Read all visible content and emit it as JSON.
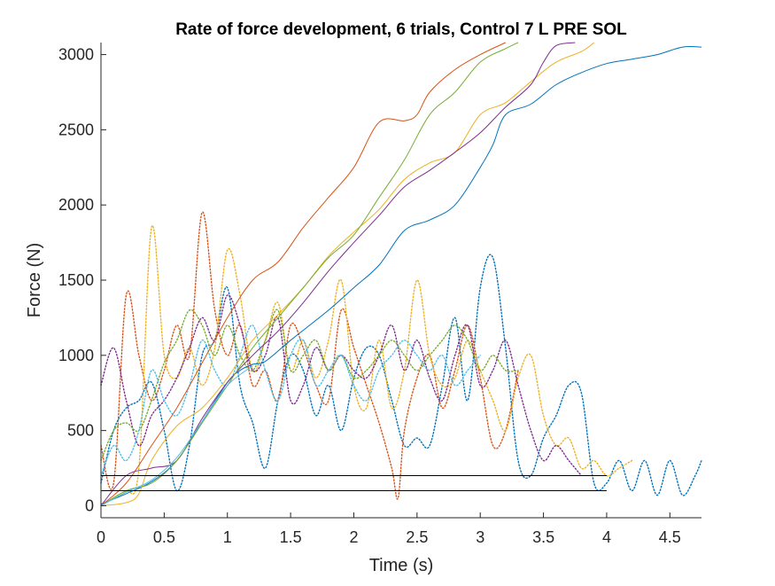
{
  "chart_data": {
    "type": "line",
    "title": "Rate of force development, 6 trials, Control 7 L PRE SOL",
    "xlabel": "Time (s)",
    "ylabel": "Force (N)",
    "xlim": [
      0,
      4.75
    ],
    "ylim": [
      -80,
      3080
    ],
    "grid": false,
    "legend": "none",
    "xticks": [
      0,
      0.5,
      1,
      1.5,
      2,
      2.5,
      3,
      3.5,
      4,
      4.5
    ],
    "xtick_labels": [
      "0",
      "0.5",
      "1",
      "1.5",
      "2",
      "2.5",
      "3",
      "3.5",
      "4",
      "4.5"
    ],
    "yticks": [
      0,
      500,
      1000,
      1500,
      2000,
      2500,
      3000
    ],
    "ytick_labels": [
      "0",
      "500",
      "1000",
      "1500",
      "2000",
      "2500",
      "3000"
    ],
    "threshold_lines": [
      {
        "y": 200,
        "x_start": 0,
        "x_end": 4.0,
        "color": "#000000"
      },
      {
        "y": 100,
        "x_start": 0,
        "x_end": 4.0,
        "color": "#000000"
      }
    ],
    "force_series": [
      {
        "color": "#0072BD",
        "x": [
          0,
          0.2,
          0.4,
          0.6,
          0.8,
          1.0,
          1.1,
          1.2,
          1.3,
          1.5,
          1.8,
          2.0,
          2.2,
          2.4,
          2.6,
          2.8,
          3.0,
          3.1,
          3.2,
          3.4,
          3.6,
          3.8,
          4.0,
          4.2,
          4.4,
          4.6,
          4.75
        ],
        "y": [
          10,
          80,
          160,
          300,
          560,
          820,
          900,
          940,
          960,
          1100,
          1300,
          1450,
          1600,
          1830,
          1900,
          2000,
          2250,
          2400,
          2600,
          2670,
          2800,
          2880,
          2940,
          2970,
          3000,
          3050,
          3050
        ]
      },
      {
        "color": "#D95319",
        "x": [
          0,
          0.2,
          0.4,
          0.6,
          0.8,
          1.0,
          1.2,
          1.4,
          1.6,
          1.8,
          2.0,
          2.2,
          2.4,
          2.5,
          2.6,
          2.8,
          3.0,
          3.2
        ],
        "y": [
          0,
          150,
          400,
          650,
          950,
          1250,
          1500,
          1620,
          1850,
          2050,
          2250,
          2550,
          2560,
          2600,
          2750,
          2900,
          3000,
          3080
        ]
      },
      {
        "color": "#EDB120",
        "x": [
          0,
          0.2,
          0.3,
          0.4,
          0.6,
          0.8,
          1.0,
          1.2,
          1.4,
          1.6,
          1.8,
          2.0,
          2.2,
          2.4,
          2.6,
          2.8,
          3.0,
          3.2,
          3.4,
          3.6,
          3.8,
          3.9
        ],
        "y": [
          0,
          20,
          80,
          300,
          530,
          650,
          850,
          1100,
          1270,
          1450,
          1660,
          1820,
          1970,
          2170,
          2280,
          2350,
          2600,
          2680,
          2820,
          2950,
          3020,
          3080
        ]
      },
      {
        "color": "#7E2F8E",
        "x": [
          0,
          0.2,
          0.4,
          0.6,
          0.8,
          1.0,
          1.2,
          1.4,
          1.6,
          1.8,
          2.0,
          2.2,
          2.4,
          2.6,
          2.8,
          3.0,
          3.2,
          3.4,
          3.5,
          3.6,
          3.75
        ],
        "y": [
          0,
          200,
          250,
          300,
          580,
          820,
          1000,
          1160,
          1350,
          1560,
          1750,
          1930,
          2120,
          2230,
          2350,
          2480,
          2650,
          2800,
          2950,
          3060,
          3080
        ]
      },
      {
        "color": "#77AC30",
        "x": [
          0,
          0.2,
          0.4,
          0.6,
          0.8,
          1.0,
          1.2,
          1.4,
          1.6,
          1.8,
          2.0,
          2.2,
          2.4,
          2.6,
          2.8,
          3.0,
          3.2,
          3.3
        ],
        "y": [
          0,
          100,
          150,
          300,
          550,
          800,
          1050,
          1250,
          1450,
          1650,
          1800,
          2050,
          2300,
          2600,
          2750,
          2950,
          3040,
          3080
        ]
      },
      {
        "color": "#4DBEEE",
        "x": [
          0,
          0.2,
          0.4,
          0.6,
          0.8,
          1.0,
          1.2
        ],
        "y": [
          0,
          90,
          170,
          320,
          560,
          800,
          930
        ]
      }
    ],
    "rfd_series": [
      {
        "color": "#0072BD",
        "x": [
          0,
          0.1,
          0.2,
          0.3,
          0.4,
          0.5,
          0.6,
          0.7,
          0.8,
          0.9,
          1.0,
          1.1,
          1.2,
          1.3,
          1.4,
          1.5,
          1.6,
          1.7,
          1.8,
          1.9,
          2.0,
          2.1,
          2.2,
          2.3,
          2.4,
          2.5,
          2.6,
          2.7,
          2.8,
          2.9,
          3.0,
          3.1,
          3.2,
          3.3,
          3.4,
          3.5,
          3.6,
          3.7,
          3.8,
          3.9,
          4.0,
          4.1,
          4.2,
          4.3,
          4.4,
          4.5,
          4.6,
          4.7,
          4.75
        ],
        "y": [
          150,
          500,
          650,
          700,
          820,
          500,
          100,
          400,
          1000,
          1100,
          1450,
          800,
          550,
          250,
          700,
          1000,
          900,
          600,
          800,
          500,
          850,
          1050,
          1000,
          700,
          400,
          450,
          400,
          800,
          1250,
          700,
          1450,
          1650,
          1050,
          300,
          200,
          450,
          600,
          800,
          750,
          150,
          150,
          300,
          100,
          300,
          70,
          300,
          70,
          200,
          300
        ]
      },
      {
        "color": "#D95319",
        "x": [
          0,
          0.1,
          0.2,
          0.3,
          0.4,
          0.5,
          0.6,
          0.7,
          0.8,
          0.9,
          1.0,
          1.1,
          1.2,
          1.3,
          1.4,
          1.5,
          1.6,
          1.7,
          1.8,
          1.9,
          2.0,
          2.1,
          2.2,
          2.3,
          2.35,
          2.4,
          2.5,
          2.6,
          2.7,
          2.8,
          2.9,
          3.0,
          3.1,
          3.2,
          3.3
        ],
        "y": [
          400,
          150,
          1400,
          1000,
          700,
          900,
          1200,
          1000,
          1950,
          1300,
          1000,
          1200,
          800,
          900,
          700,
          1200,
          1050,
          800,
          700,
          1300,
          1050,
          800,
          550,
          250,
          50,
          500,
          850,
          1000,
          650,
          900,
          1200,
          850,
          400,
          500,
          900
        ]
      },
      {
        "color": "#EDB120",
        "x": [
          0,
          0.1,
          0.2,
          0.3,
          0.4,
          0.5,
          0.6,
          0.7,
          0.8,
          0.9,
          1.0,
          1.1,
          1.2,
          1.3,
          1.4,
          1.5,
          1.6,
          1.7,
          1.8,
          1.9,
          2.0,
          2.1,
          2.2,
          2.3,
          2.4,
          2.5,
          2.6,
          2.7,
          2.8,
          2.9,
          3.0,
          3.1,
          3.2,
          3.3,
          3.4,
          3.5,
          3.6,
          3.7,
          3.8,
          3.9,
          4.0,
          4.1,
          4.2
        ],
        "y": [
          0,
          50,
          100,
          250,
          1850,
          1000,
          850,
          1050,
          800,
          1050,
          1700,
          1400,
          900,
          1100,
          1350,
          900,
          1100,
          850,
          1100,
          1500,
          800,
          650,
          1100,
          650,
          900,
          1500,
          1000,
          800,
          850,
          1100,
          900,
          700,
          500,
          850,
          1000,
          600,
          400,
          450,
          250,
          300,
          200,
          250,
          300
        ]
      },
      {
        "color": "#7E2F8E",
        "x": [
          0,
          0.1,
          0.2,
          0.3,
          0.4,
          0.5,
          0.6,
          0.7,
          0.8,
          0.9,
          1.0,
          1.1,
          1.2,
          1.3,
          1.4,
          1.5,
          1.6,
          1.7,
          1.8,
          1.9,
          2.0,
          2.1,
          2.2,
          2.3,
          2.4,
          2.5,
          2.6,
          2.7,
          2.8,
          2.9,
          3.0,
          3.1,
          3.2,
          3.3,
          3.4,
          3.5,
          3.6,
          3.7,
          3.8
        ],
        "y": [
          800,
          1050,
          700,
          400,
          600,
          700,
          850,
          1050,
          1250,
          1100,
          1400,
          1200,
          900,
          1000,
          1250,
          700,
          800,
          1050,
          900,
          1000,
          900,
          850,
          1000,
          1200,
          900,
          1100,
          850,
          700,
          1000,
          1200,
          800,
          900,
          1100,
          800,
          500,
          300,
          400,
          300,
          200
        ]
      },
      {
        "color": "#77AC30",
        "x": [
          0,
          0.1,
          0.2,
          0.3,
          0.4,
          0.5,
          0.6,
          0.7,
          0.8,
          0.9,
          1.0,
          1.1,
          1.2,
          1.3,
          1.4,
          1.5,
          1.6,
          1.7,
          1.8,
          1.9,
          2.0,
          2.1,
          2.2,
          2.3,
          2.4,
          2.5,
          2.6,
          2.7,
          2.8,
          2.9,
          3.0,
          3.1,
          3.2,
          3.3
        ],
        "y": [
          300,
          500,
          550,
          500,
          700,
          950,
          1100,
          1300,
          1200,
          1000,
          1200,
          1000,
          900,
          1100,
          1300,
          900,
          1000,
          1100,
          900,
          1000,
          850,
          900,
          1000,
          1100,
          1000,
          900,
          1000,
          1100,
          1200,
          1100,
          900,
          1000,
          900,
          900
        ]
      },
      {
        "color": "#4DBEEE",
        "x": [
          0,
          0.1,
          0.2,
          0.3,
          0.4,
          0.5,
          0.6,
          0.7,
          0.8,
          0.9,
          1.0,
          1.1,
          1.2,
          1.3,
          1.4,
          1.5,
          1.6,
          1.7,
          1.8,
          1.9,
          2.0,
          2.1,
          2.2,
          2.3,
          2.4,
          2.5,
          2.6,
          2.7,
          2.8,
          2.9,
          3.0
        ],
        "y": [
          200,
          400,
          300,
          500,
          900,
          700,
          600,
          800,
          1100,
          900,
          800,
          1000,
          1200,
          900,
          700,
          1000,
          1100,
          800,
          900,
          1000,
          800,
          700,
          900,
          1000,
          1100,
          1000,
          900,
          1000,
          800,
          900,
          1000
        ]
      }
    ]
  }
}
